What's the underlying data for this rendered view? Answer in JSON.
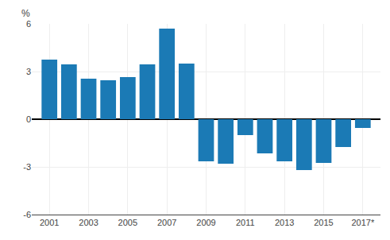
{
  "chart_data": {
    "type": "bar",
    "ylabel": "%",
    "x": [
      2001,
      2002,
      2003,
      2004,
      2005,
      2006,
      2007,
      2008,
      2009,
      2010,
      2011,
      2012,
      2013,
      2014,
      2015,
      2016,
      2017
    ],
    "values": [
      3.75,
      3.45,
      2.55,
      2.45,
      2.65,
      3.45,
      5.7,
      3.5,
      -2.65,
      -2.8,
      -1.0,
      -2.15,
      -2.65,
      -3.2,
      -2.75,
      -1.75,
      -0.55
    ],
    "color": "#1b7ab5",
    "xlim": [
      2000.1,
      2017.9
    ],
    "xticks": [
      2001,
      2003,
      2005,
      2007,
      2009,
      2011,
      2013,
      2015,
      {
        "value": 2017,
        "label": "2017*"
      }
    ],
    "ylim": [
      -6,
      6
    ],
    "yticks": [
      -6,
      -3,
      0,
      3,
      6
    ],
    "grid": true
  }
}
